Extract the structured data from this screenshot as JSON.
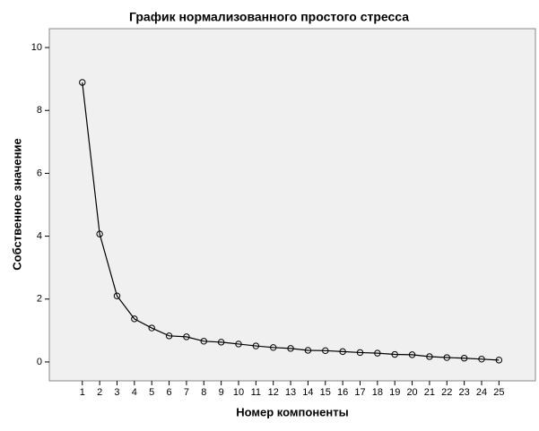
{
  "chart_data": {
    "type": "line",
    "title": "График нормализованного простого стресса",
    "x_label": "Номер компоненты",
    "y_label": "Собственное значение",
    "x": [
      1,
      2,
      3,
      4,
      5,
      6,
      7,
      8,
      9,
      10,
      11,
      12,
      13,
      14,
      15,
      16,
      17,
      18,
      19,
      20,
      21,
      22,
      23,
      24,
      25
    ],
    "series": [
      {
        "name": "Собственное значение",
        "color": "#000000",
        "values": [
          8.89,
          4.07,
          2.1,
          1.37,
          1.08,
          0.83,
          0.8,
          0.66,
          0.63,
          0.57,
          0.51,
          0.46,
          0.43,
          0.37,
          0.36,
          0.33,
          0.3,
          0.28,
          0.24,
          0.23,
          0.17,
          0.14,
          0.12,
          0.09,
          0.06
        ]
      }
    ],
    "xlim": [
      -0.9,
      27.1
    ],
    "xticks": [
      1,
      2,
      3,
      4,
      5,
      6,
      7,
      8,
      9,
      10,
      11,
      12,
      13,
      14,
      15,
      16,
      17,
      18,
      19,
      20,
      21,
      22,
      23,
      24,
      25
    ],
    "ylim": [
      -0.6,
      10.6
    ],
    "yticks": [
      0,
      2,
      4,
      6,
      8,
      10
    ],
    "grid": false,
    "background": "#f0f0f0"
  }
}
